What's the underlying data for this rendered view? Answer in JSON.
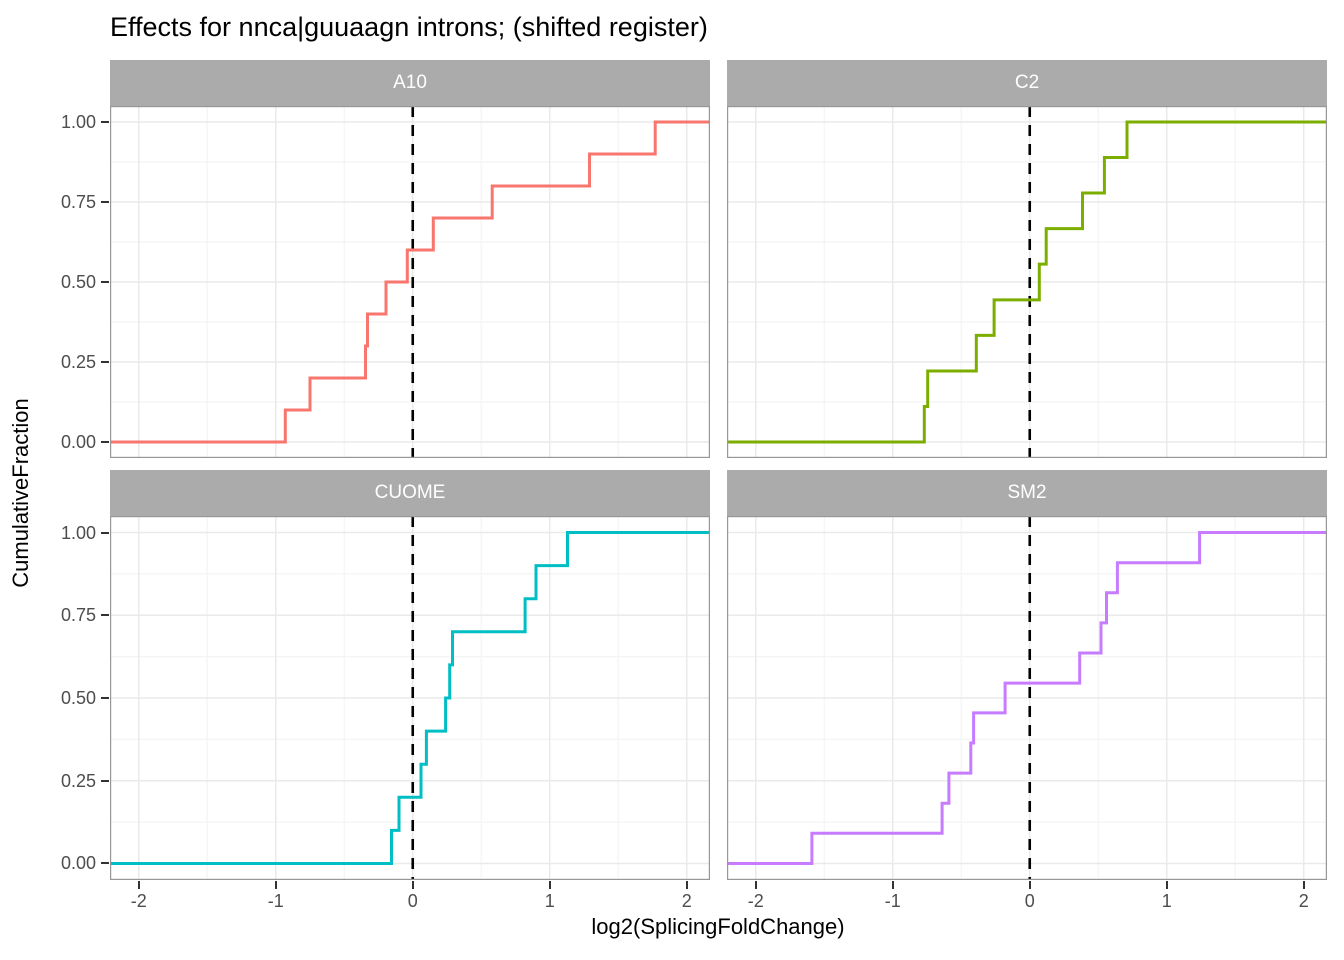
{
  "title": "Effects for nnca|guuaagn introns; (shifted register)",
  "style": {
    "strip_bg": "#ABABAB",
    "strip_text": "#FFFFFF",
    "grid_major": "#EAEAEA",
    "grid_minor": "#F4F4F4",
    "panel_border": "#979797",
    "vline_color": "#000000",
    "tick_color": "#333333",
    "tick_label_color": "#4d4d4d"
  },
  "chart_data": {
    "type": "step",
    "subtype": "ecdf",
    "title": "Effects for nnca|guuaagn introns; (shifted register)",
    "xlabel": "log2(SplicingFoldChange)",
    "ylabel": "CumulativeFraction",
    "xlim": [
      -2.21,
      2.17
    ],
    "ylim": [
      -0.05,
      1.05
    ],
    "x_tick_values": [
      -2,
      -1,
      0,
      1,
      2
    ],
    "x_tick_labels": [
      "-2",
      "-1",
      "0",
      "1",
      "2"
    ],
    "y_tick_values": [
      0,
      0.25,
      0.5,
      0.75,
      1
    ],
    "y_tick_labels": [
      "0.00",
      "0.25",
      "0.50",
      "0.75",
      "1.00"
    ],
    "x_minor_gridlines": [
      -1.5,
      -0.5,
      0.5,
      1.5
    ],
    "y_minor_gridlines": [
      0.125,
      0.375,
      0.625,
      0.875
    ],
    "vline_x": 0,
    "vline_style": "dashed",
    "grid": true,
    "legend_position": "none",
    "facets": [
      {
        "label": "A10",
        "color": "#F8766D",
        "points": [
          [
            -0.93,
            0.1
          ],
          [
            -0.75,
            0.2
          ],
          [
            -0.345,
            0.3
          ],
          [
            -0.33,
            0.4
          ],
          [
            -0.195,
            0.5
          ],
          [
            -0.04,
            0.6
          ],
          [
            0.15,
            0.7
          ],
          [
            0.58,
            0.8
          ],
          [
            1.29,
            0.9
          ],
          [
            1.77,
            1.0
          ]
        ]
      },
      {
        "label": "C2",
        "color": "#7CAE00",
        "points": [
          [
            -0.77,
            0.111
          ],
          [
            -0.745,
            0.222
          ],
          [
            -0.39,
            0.333
          ],
          [
            -0.26,
            0.444
          ],
          [
            0.07,
            0.556
          ],
          [
            0.12,
            0.667
          ],
          [
            0.385,
            0.778
          ],
          [
            0.545,
            0.889
          ],
          [
            0.71,
            1.0
          ]
        ]
      },
      {
        "label": "CUOME",
        "color": "#00BFC4",
        "points": [
          [
            -0.155,
            0.1
          ],
          [
            -0.1,
            0.2
          ],
          [
            0.06,
            0.3
          ],
          [
            0.1,
            0.4
          ],
          [
            0.24,
            0.5
          ],
          [
            0.27,
            0.6
          ],
          [
            0.29,
            0.7
          ],
          [
            0.82,
            0.8
          ],
          [
            0.9,
            0.9
          ],
          [
            1.13,
            1.0
          ]
        ]
      },
      {
        "label": "SM2",
        "color": "#C77CFF",
        "points": [
          [
            -1.59,
            0.091
          ],
          [
            -0.64,
            0.182
          ],
          [
            -0.59,
            0.273
          ],
          [
            -0.43,
            0.364
          ],
          [
            -0.41,
            0.455
          ],
          [
            -0.18,
            0.545
          ],
          [
            0.365,
            0.636
          ],
          [
            0.52,
            0.727
          ],
          [
            0.56,
            0.818
          ],
          [
            0.64,
            0.909
          ],
          [
            1.24,
            1.0
          ]
        ]
      }
    ]
  }
}
